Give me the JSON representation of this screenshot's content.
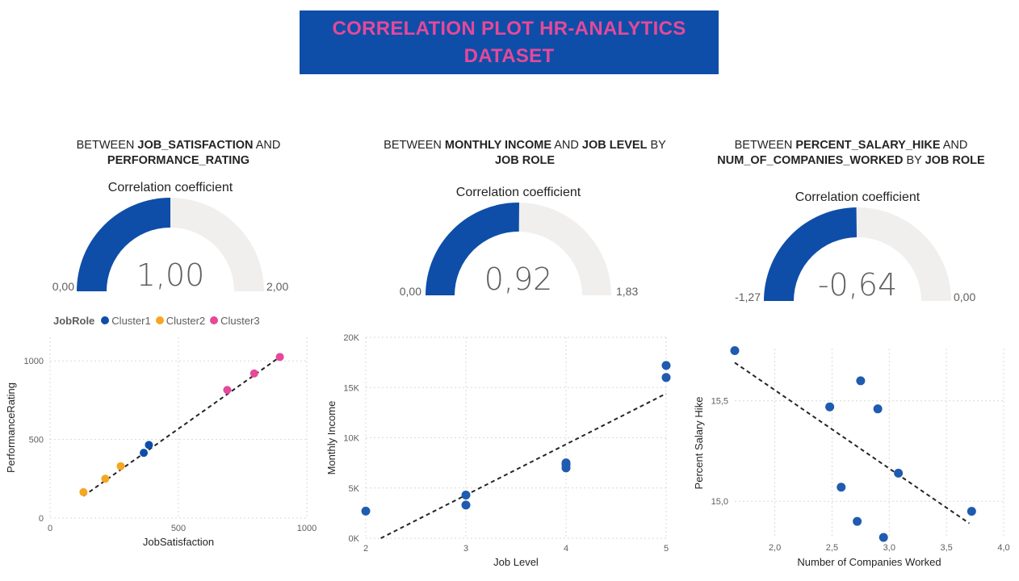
{
  "banner": {
    "line1": "CORRELATION PLOT HR-ANALYTICS",
    "line2": "DATASET"
  },
  "sections": [
    {
      "prefix": "BETWEEN ",
      "b1": "JOB_SATISFACTION",
      "mid": " AND",
      "line2_b": "PERFORMANCE_RATING",
      "line2_tail": ""
    },
    {
      "prefix": "BETWEEN ",
      "b1": "MONTHLY INCOME",
      "mid": " AND ",
      "b2": "JOB LEVEL",
      "tail": " BY",
      "line2_b": "JOB ROLE",
      "line2_tail": ""
    },
    {
      "prefix": "BETWEEN ",
      "b1": "PERCENT_SALARY_HIKE",
      "mid": " AND",
      "line2_b": "NUM_OF_COMPANIES_WORKED",
      "line2_mid": " BY ",
      "line2_b2": "JOB ROLE"
    }
  ],
  "colors": {
    "gauge_fill": "#0e4ea8",
    "gauge_track": "#f0efed",
    "cluster1": "#0e4ea8",
    "cluster2": "#f5a623",
    "cluster3": "#e6489a",
    "point": "#1f5bb0",
    "trend": "#252423",
    "grid": "#d9d9d9"
  },
  "chart_data": [
    {
      "type": "gauge",
      "title": "Correlation coefficient",
      "value": 1.0,
      "min": 0,
      "max": 2,
      "value_label": "1,00",
      "min_label": "0,00",
      "max_label": "2,00"
    },
    {
      "type": "gauge",
      "title": "Correlation coefficient",
      "value": 0.92,
      "min": 0,
      "max": 1.83,
      "value_label": "0,92",
      "min_label": "0,00",
      "max_label": "1,83"
    },
    {
      "type": "gauge",
      "title": "Correlation coefficient",
      "value": -0.64,
      "min": -1.27,
      "max": 0,
      "value_label": "-0,64",
      "min_label": "-1,27",
      "max_label": "0,00"
    },
    {
      "type": "scatter",
      "xlabel": "JobSatisfaction",
      "ylabel": "PerformanceRating",
      "xlim": [
        0,
        1000
      ],
      "ylim": [
        0,
        1150
      ],
      "xticks": [
        0,
        500,
        1000
      ],
      "xtick_labels": [
        "0",
        "500",
        "1000"
      ],
      "yticks": [
        0,
        500,
        1000
      ],
      "ytick_labels": [
        "0",
        "500",
        "1000"
      ],
      "legend": {
        "title": "JobRole",
        "position": "top-left",
        "entries": [
          "Cluster1",
          "Cluster2",
          "Cluster3"
        ]
      },
      "series": [
        {
          "name": "Cluster1",
          "x": [
            365,
            385
          ],
          "y": [
            415,
            465
          ]
        },
        {
          "name": "Cluster2",
          "x": [
            130,
            215,
            275
          ],
          "y": [
            165,
            250,
            330
          ]
        },
        {
          "name": "Cluster3",
          "x": [
            690,
            795,
            895
          ],
          "y": [
            815,
            920,
            1025
          ]
        }
      ],
      "trend": {
        "x": [
          130,
          895
        ],
        "y": [
          140,
          1025
        ]
      }
    },
    {
      "type": "scatter",
      "xlabel": "Job Level",
      "ylabel": "Monthly Income",
      "xlim": [
        2,
        5
      ],
      "ylim": [
        0,
        20000
      ],
      "xticks": [
        2,
        3,
        4,
        5
      ],
      "xtick_labels": [
        "2",
        "3",
        "4",
        "5"
      ],
      "yticks": [
        0,
        5000,
        10000,
        15000,
        20000
      ],
      "ytick_labels": [
        "0K",
        "5K",
        "10K",
        "15K",
        "20K"
      ],
      "series": [
        {
          "name": "",
          "x": [
            2,
            3,
            3,
            4,
            4,
            4,
            5,
            5
          ],
          "y": [
            2700,
            4300,
            3300,
            7500,
            7000,
            7300,
            17200,
            16000
          ]
        }
      ],
      "trend": {
        "x": [
          2.15,
          5
        ],
        "y": [
          0,
          14400
        ]
      }
    },
    {
      "type": "scatter",
      "xlabel": "Number of Companies Worked",
      "ylabel": "Percent Salary Hike",
      "xlim": [
        1.65,
        4.0
      ],
      "ylim": [
        14.82,
        15.76
      ],
      "xticks": [
        2.0,
        2.5,
        3.0,
        3.5,
        4.0
      ],
      "xtick_labels": [
        "2,0",
        "2,5",
        "3,0",
        "3,5",
        "4,0"
      ],
      "yticks": [
        15.0,
        15.5
      ],
      "ytick_labels": [
        "15,0",
        "15,5"
      ],
      "series": [
        {
          "name": "",
          "x": [
            1.65,
            2.75,
            2.48,
            2.9,
            3.08,
            2.58,
            2.72,
            2.95,
            3.72
          ],
          "y": [
            15.75,
            15.6,
            15.47,
            15.46,
            15.14,
            15.07,
            14.9,
            14.82,
            14.95
          ]
        }
      ],
      "trend": {
        "x": [
          1.65,
          3.7
        ],
        "y": [
          15.69,
          14.89
        ]
      }
    }
  ]
}
